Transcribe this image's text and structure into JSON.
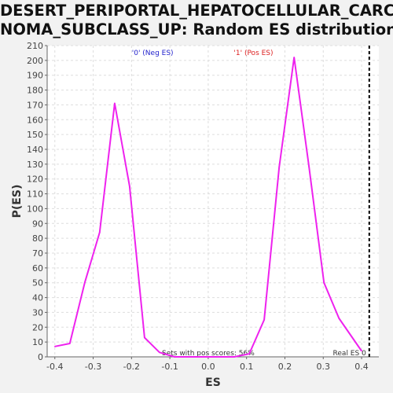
{
  "chart_data": {
    "type": "line",
    "title_line1": "DESERT_PERIPORTAL_HEPATOCELLULAR_CARCI",
    "title_line2": "NOMA_SUBCLASS_UP: Random ES distribution",
    "xlabel": "ES",
    "ylabel": "P(ES)",
    "xlim": [
      -0.42,
      0.445
    ],
    "ylim": [
      0,
      210
    ],
    "xticks": [
      "-0.4",
      "-0.3",
      "-0.2",
      "-0.1",
      "0.0",
      "0.1",
      "0.2",
      "0.3",
      "0.4"
    ],
    "xtick_values": [
      -0.4,
      -0.3,
      -0.2,
      -0.1,
      0.0,
      0.1,
      0.2,
      0.3,
      0.4
    ],
    "yticks": [
      0,
      10,
      20,
      30,
      40,
      50,
      60,
      70,
      80,
      90,
      100,
      110,
      120,
      130,
      140,
      150,
      160,
      170,
      180,
      190,
      200,
      210
    ],
    "grid": true,
    "series": [
      {
        "color": "#ee22ee",
        "x": [
          -0.4,
          -0.361,
          -0.322,
          -0.283,
          -0.244,
          -0.205,
          -0.166,
          -0.127,
          -0.088,
          -0.049,
          -0.01,
          0.029,
          0.068,
          0.107,
          0.146,
          0.185,
          0.224,
          0.263,
          0.302,
          0.341,
          0.4
        ],
        "y": [
          7,
          9,
          50,
          84,
          171,
          115,
          13,
          3,
          0,
          0,
          0,
          0,
          0,
          2,
          25,
          128,
          202,
          128,
          50,
          26,
          4
        ]
      }
    ],
    "real_es": 0.42,
    "real_es_label": "Real ES 0",
    "legend_neg": "'0' (Neg ES)",
    "legend_pos": "'1' (Pos ES)",
    "neg_color": "#2222cc",
    "pos_color": "#dd2222",
    "annotation": "Sets with pos scores: 56%"
  }
}
